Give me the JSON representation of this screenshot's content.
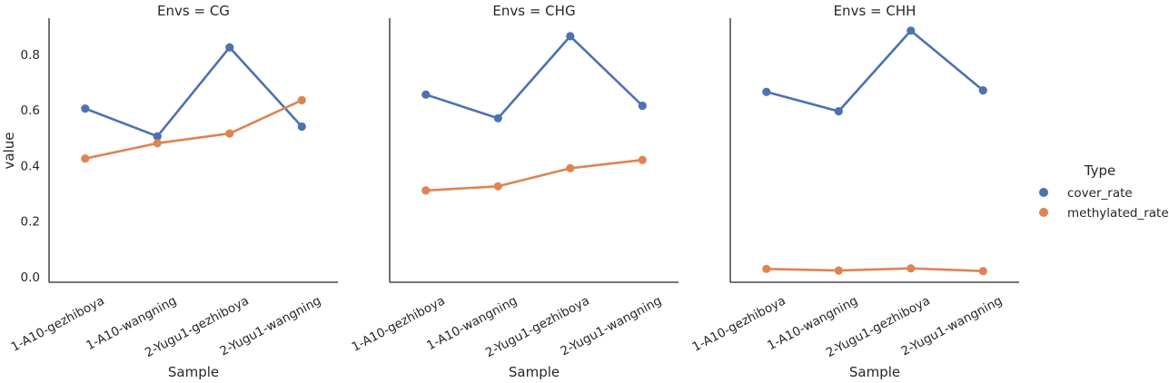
{
  "chart_data": {
    "type": "line",
    "categories": [
      "1-A10-gezhiboya",
      "1-A10-wangning",
      "2-Yugu1-gezhiboya",
      "2-Yugu1-wangning"
    ],
    "xlabel": "Sample",
    "ylabel": "value",
    "ylim": [
      -0.02,
      0.93
    ],
    "yticks": [
      0.0,
      0.2,
      0.4,
      0.6,
      0.8
    ],
    "ytick_labels": [
      "0.0",
      "0.2",
      "0.4",
      "0.6",
      "0.8"
    ],
    "grid": false,
    "legend": {
      "title": "Type",
      "placement": "right",
      "entries": [
        {
          "name": "cover_rate",
          "color": "#4c72b0"
        },
        {
          "name": "methylated_rate",
          "color": "#dd8452"
        }
      ]
    },
    "facets": [
      {
        "title": "Envs = CG",
        "series": [
          {
            "name": "cover_rate",
            "color": "#4c72b0",
            "values": [
              0.605,
              0.505,
              0.825,
              0.54
            ]
          },
          {
            "name": "methylated_rate",
            "color": "#dd8452",
            "values": [
              0.425,
              0.48,
              0.515,
              0.635
            ]
          }
        ]
      },
      {
        "title": "Envs = CHG",
        "series": [
          {
            "name": "cover_rate",
            "color": "#4c72b0",
            "values": [
              0.655,
              0.57,
              0.865,
              0.615
            ]
          },
          {
            "name": "methylated_rate",
            "color": "#dd8452",
            "values": [
              0.31,
              0.325,
              0.39,
              0.42
            ]
          }
        ]
      },
      {
        "title": "Envs = CHH",
        "series": [
          {
            "name": "cover_rate",
            "color": "#4c72b0",
            "values": [
              0.665,
              0.595,
              0.885,
              0.67
            ]
          },
          {
            "name": "methylated_rate",
            "color": "#dd8452",
            "values": [
              0.028,
              0.022,
              0.03,
              0.02
            ]
          }
        ]
      }
    ]
  }
}
